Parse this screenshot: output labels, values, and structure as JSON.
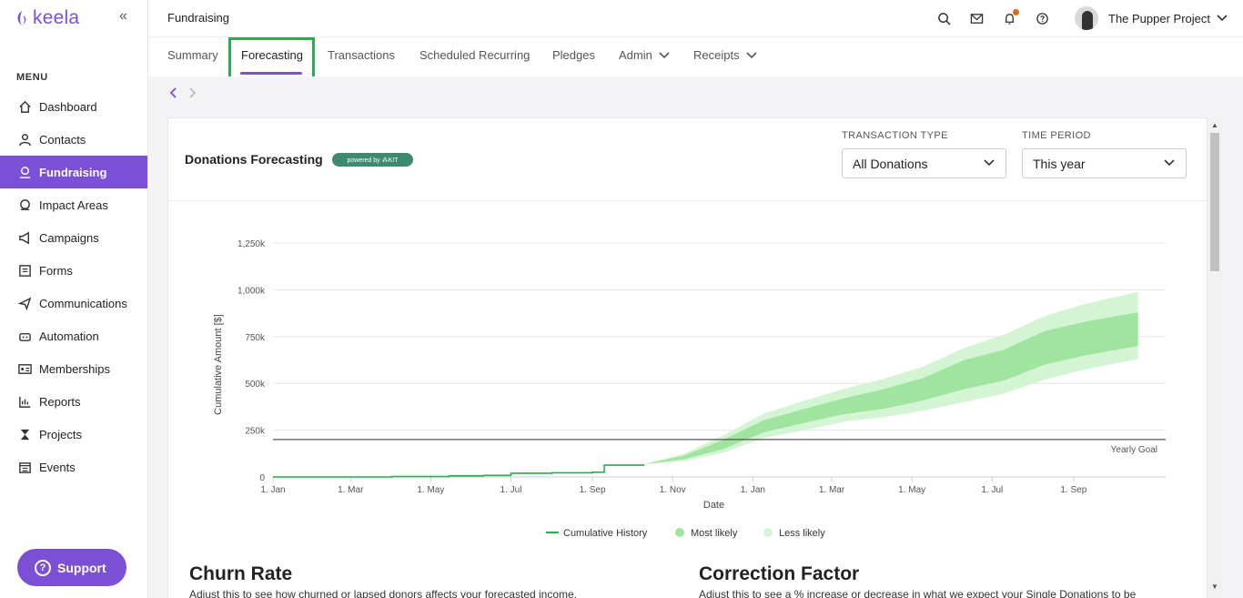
{
  "app": {
    "brand": "keela",
    "collapse_glyph": "«"
  },
  "sidebar": {
    "menu_label": "MENU",
    "items": [
      {
        "label": "Dashboard",
        "icon": "home-icon"
      },
      {
        "label": "Contacts",
        "icon": "user-icon"
      },
      {
        "label": "Fundraising",
        "icon": "donation-icon",
        "active": true
      },
      {
        "label": "Impact Areas",
        "icon": "globe-hand-icon"
      },
      {
        "label": "Campaigns",
        "icon": "megaphone-icon"
      },
      {
        "label": "Forms",
        "icon": "form-icon"
      },
      {
        "label": "Communications",
        "icon": "send-icon"
      },
      {
        "label": "Automation",
        "icon": "robot-icon"
      },
      {
        "label": "Memberships",
        "icon": "id-card-icon"
      },
      {
        "label": "Reports",
        "icon": "bar-chart-icon"
      },
      {
        "label": "Projects",
        "icon": "hourglass-icon"
      },
      {
        "label": "Events",
        "icon": "calendar-icon"
      }
    ],
    "support_label": "Support"
  },
  "header": {
    "title": "Fundraising",
    "org_name": "The Pupper Project",
    "icons": [
      "search-icon",
      "mail-icon",
      "bell-icon",
      "help-icon"
    ]
  },
  "tabs": [
    {
      "label": "Summary"
    },
    {
      "label": "Forecasting",
      "active": true
    },
    {
      "label": "Transactions"
    },
    {
      "label": "Scheduled Recurring"
    },
    {
      "label": "Pledges"
    },
    {
      "label": "Admin",
      "dropdown": true
    },
    {
      "label": "Receipts",
      "dropdown": true
    }
  ],
  "card": {
    "title": "Donations Forecasting",
    "badge": "powered by ⁂KIT",
    "transaction_type": {
      "label": "TRANSACTION TYPE",
      "value": "All Donations"
    },
    "time_period": {
      "label": "TIME PERIOD",
      "value": "This year"
    }
  },
  "sections": {
    "churn": {
      "title": "Churn Rate",
      "text": "Adjust this to see how churned or lapsed donors affects your forecasted income."
    },
    "correction": {
      "title": "Correction Factor",
      "text": "Adjust this to see a % increase or decrease in what we expect your Single Donations to be"
    }
  },
  "colors": {
    "accent": "#7b4fd6",
    "history": "#22b14c",
    "most_likely": "#9fe5a0",
    "less_likely": "#d4f5d4",
    "goal": "#555555"
  },
  "chart_data": {
    "type": "area",
    "xlabel": "Date",
    "ylabel": "Cumulative Amount [$]",
    "x_ticks": [
      "1. Jan",
      "1. Mar",
      "1. May",
      "1. Jul",
      "1. Sep",
      "1. Nov",
      "1. Jan",
      "1. Mar",
      "1. May",
      "1. Jul",
      "1. Sep"
    ],
    "y_ticks": [
      "0",
      "250k",
      "500k",
      "750k",
      "1,000k",
      "1,250k"
    ],
    "ylim": [
      0,
      1250000
    ],
    "goal": {
      "label": "Yearly Goal",
      "value": 200000
    },
    "legend": [
      "Cumulative History",
      "Most likely",
      "Less likely"
    ],
    "history": {
      "name": "Cumulative History",
      "x": [
        "2023-01-01",
        "2023-04-01",
        "2023-05-15",
        "2023-06-10",
        "2023-07-01",
        "2023-08-01",
        "2023-09-01",
        "2023-09-10",
        "2023-10-10"
      ],
      "y": [
        0,
        2000,
        6000,
        8000,
        20000,
        22000,
        25000,
        63000,
        68000
      ]
    },
    "forecast_dates": [
      "2023-10-10",
      "2023-11-10",
      "2023-12-10",
      "2024-01-10",
      "2024-02-10",
      "2024-03-10",
      "2024-04-10",
      "2024-05-10",
      "2024-06-10",
      "2024-07-10",
      "2024-08-10",
      "2024-09-10",
      "2024-10-20"
    ],
    "forecast_median": [
      68000,
      105000,
      175000,
      275000,
      330000,
      380000,
      420000,
      470000,
      550000,
      600000,
      690000,
      740000,
      800000
    ],
    "most_likely_low": [
      68000,
      95000,
      150000,
      240000,
      290000,
      335000,
      365000,
      410000,
      470000,
      515000,
      600000,
      650000,
      700000
    ],
    "most_likely_high": [
      68000,
      115000,
      200000,
      305000,
      365000,
      420000,
      470000,
      530000,
      625000,
      680000,
      780000,
      830000,
      880000
    ],
    "less_likely_low": [
      68000,
      85000,
      130000,
      210000,
      250000,
      295000,
      320000,
      355000,
      400000,
      445000,
      520000,
      575000,
      630000
    ],
    "less_likely_high": [
      68000,
      125000,
      225000,
      340000,
      410000,
      470000,
      525000,
      590000,
      690000,
      760000,
      860000,
      925000,
      990000
    ]
  }
}
